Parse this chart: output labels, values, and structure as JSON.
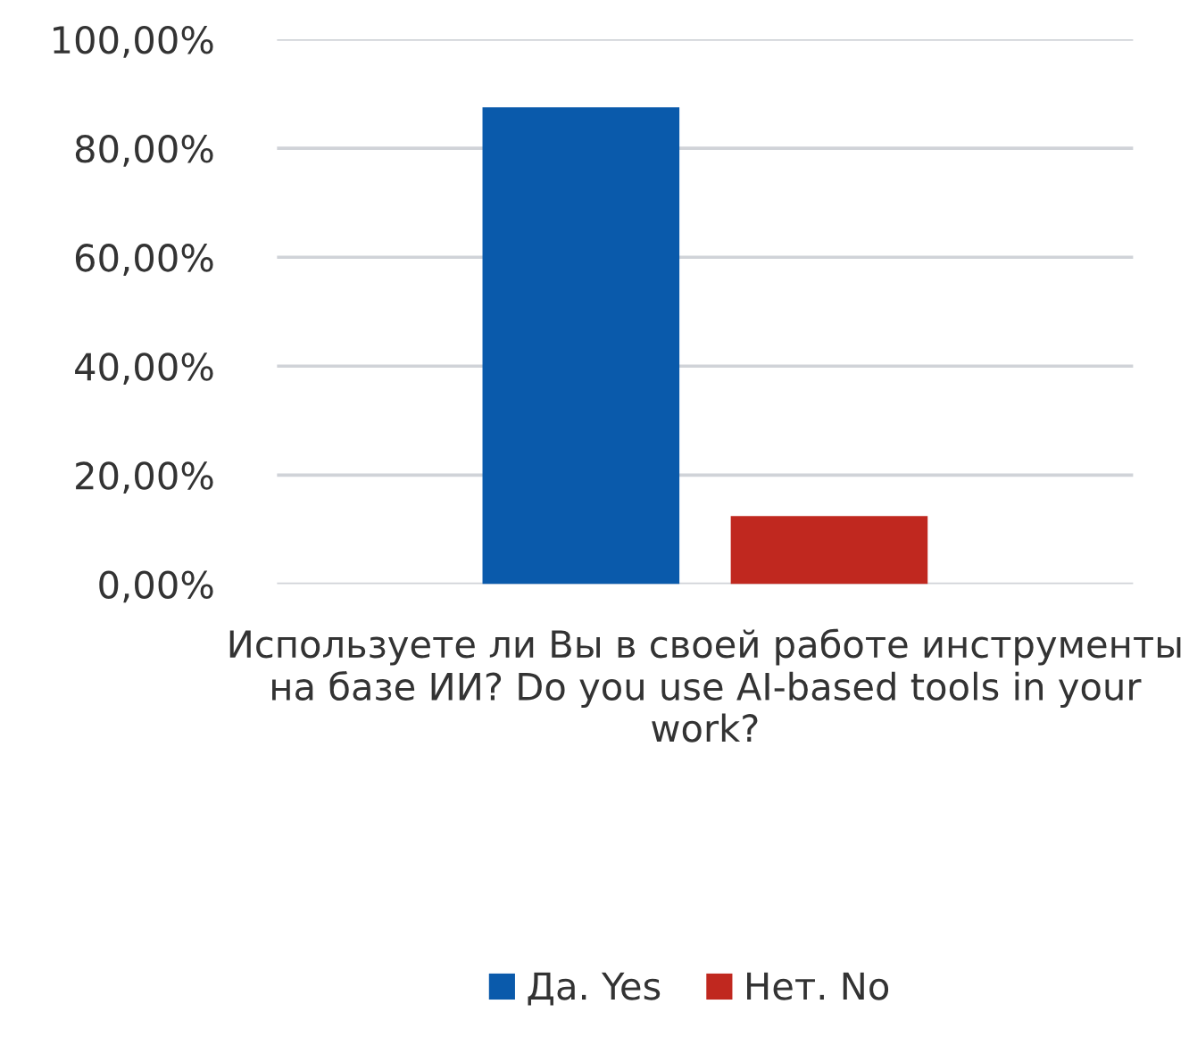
{
  "chart_data": {
    "type": "bar",
    "categories": [
      "Используете ли Вы в своей работе инструменты на базе ИИ? Do you use AI-based tools in your work?"
    ],
    "series": [
      {
        "name": "Да. Yes",
        "color": "#0a5aab",
        "values": [
          87.5
        ]
      },
      {
        "name": "Нет. No",
        "color": "#c0281f",
        "values": [
          12.5
        ]
      }
    ],
    "ylim": [
      0,
      100
    ],
    "yticks": [
      {
        "value": 0,
        "label": "0,00%"
      },
      {
        "value": 20,
        "label": "20,00%"
      },
      {
        "value": 40,
        "label": "40,00%"
      },
      {
        "value": 60,
        "label": "60,00%"
      },
      {
        "value": 80,
        "label": "80,00%"
      },
      {
        "value": 100,
        "label": "100,00%"
      }
    ],
    "grid": "y",
    "legend": "bottom"
  }
}
